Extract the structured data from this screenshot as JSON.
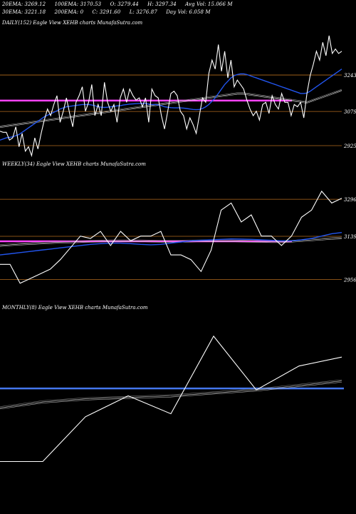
{
  "header": {
    "row1": [
      "20EMA: 3269.12",
      "100EMA: 3170.53",
      "O: 3279.44",
      "H: 3297.34",
      "Avg Vol: 15.066  M"
    ],
    "row2": [
      "30EMA: 3221.18",
      "200EMA: 0",
      "C: 3291.60",
      "L: 3276.87",
      "Day Vol: 6.058  M"
    ]
  },
  "colors": {
    "background": "#000000",
    "price": "#ffffff",
    "ema_fast": "#2255ee",
    "ema_slow": "#cccccc",
    "support_line": "#ff44ff",
    "level_line": "#b36b1e",
    "monthly_level": "#4477ee"
  },
  "chart_data": [
    {
      "type": "line",
      "title": "DAILY(152) Eagle   View  XEHB charts MunafaSutra.com",
      "y_ticks": [
        "3243",
        "3079",
        "2925"
      ],
      "price": [
        2990,
        2985,
        2985,
        2950,
        2960,
        3010,
        2920,
        2980,
        2900,
        2920,
        2880,
        2960,
        2910,
        2980,
        3040,
        3090,
        3060,
        3110,
        3150,
        3030,
        3080,
        3140,
        3070,
        3010,
        3120,
        3150,
        3190,
        3080,
        3120,
        3200,
        3060,
        3110,
        3060,
        3210,
        3120,
        3080,
        3110,
        3030,
        3140,
        3180,
        3120,
        3180,
        3150,
        3130,
        3140,
        3100,
        3140,
        3030,
        3180,
        3150,
        3140,
        3060,
        3000,
        3080,
        3160,
        3170,
        3150,
        3080,
        3060,
        3000,
        3050,
        3020,
        2980,
        3060,
        3140,
        3120,
        3250,
        3310,
        3270,
        3380,
        3260,
        3350,
        3230,
        3310,
        3190,
        3220,
        3200,
        3180,
        3130,
        3090,
        3060,
        3080,
        3040,
        3110,
        3120,
        3070,
        3150,
        3110,
        3090,
        3160,
        3120,
        3120,
        3060,
        3110,
        3100,
        3120,
        3050,
        3160,
        3240,
        3290,
        3350,
        3310,
        3390,
        3330,
        3420,
        3340,
        3360,
        3340,
        3350
      ],
      "ema_fast": [
        2950,
        2955,
        2960,
        2962,
        2965,
        2970,
        2975,
        2985,
        2995,
        3005,
        3015,
        3025,
        3035,
        3045,
        3055,
        3062,
        3068,
        3075,
        3082,
        3090,
        3095,
        3100,
        3102,
        3104,
        3106,
        3108,
        3110,
        3110,
        3110,
        3108,
        3105,
        3100,
        3098,
        3097,
        3098,
        3100,
        3102,
        3104,
        3105,
        3108,
        3110,
        3112,
        3113,
        3114,
        3115,
        3115,
        3115,
        3112,
        3110,
        3110,
        3108,
        3105,
        3100,
        3098,
        3096,
        3095,
        3095,
        3095,
        3094,
        3092,
        3090,
        3088,
        3087,
        3088,
        3092,
        3100,
        3110,
        3125,
        3140,
        3160,
        3180,
        3200,
        3215,
        3230,
        3240,
        3245,
        3248,
        3248,
        3245,
        3240,
        3235,
        3230,
        3225,
        3220,
        3215,
        3210,
        3205,
        3200,
        3195,
        3190,
        3185,
        3180,
        3175,
        3170,
        3165,
        3160,
        3160,
        3162,
        3170,
        3180,
        3190,
        3200,
        3210,
        3220,
        3230,
        3240,
        3250,
        3260,
        3270
      ],
      "ema_slow": [
        3010,
        3012,
        3014,
        3016,
        3018,
        3020,
        3022,
        3024,
        3026,
        3028,
        3030,
        3032,
        3034,
        3036,
        3038,
        3040,
        3042,
        3044,
        3046,
        3048,
        3050,
        3052,
        3054,
        3056,
        3058,
        3060,
        3062,
        3064,
        3066,
        3068,
        3070,
        3072,
        3074,
        3076,
        3078,
        3080,
        3082,
        3084,
        3086,
        3088,
        3090,
        3092,
        3094,
        3096,
        3098,
        3100,
        3102,
        3104,
        3106,
        3108,
        3110,
        3112,
        3114,
        3116,
        3118,
        3120,
        3122,
        3124,
        3126,
        3128,
        3130,
        3132,
        3134,
        3136,
        3138,
        3140,
        3142,
        3144,
        3146,
        3148,
        3150,
        3152,
        3154,
        3156,
        3158,
        3160,
        3160,
        3160,
        3158,
        3156,
        3154,
        3152,
        3150,
        3148,
        3146,
        3144,
        3142,
        3140,
        3138,
        3136,
        3134,
        3132,
        3130,
        3128,
        3126,
        3124,
        3122,
        3120,
        3125,
        3130,
        3135,
        3140,
        3145,
        3150,
        3155,
        3160,
        3165,
        3170,
        3175
      ],
      "levels": [
        3243,
        3079,
        2925
      ],
      "support": 3128,
      "ylim": [
        2880,
        3420
      ]
    },
    {
      "type": "line",
      "title": "WEEKLY(34) Eagle   View  XEHB charts MunafaSutra.com",
      "y_ticks": [
        "3296",
        "3139",
        "2956"
      ],
      "price": [
        3020,
        3020,
        2940,
        2960,
        2980,
        3000,
        3040,
        3090,
        3140,
        3130,
        3160,
        3100,
        3160,
        3120,
        3140,
        3140,
        3160,
        3060,
        3060,
        3040,
        2990,
        3080,
        3250,
        3280,
        3200,
        3230,
        3140,
        3140,
        3100,
        3140,
        3220,
        3250,
        3330,
        3280,
        3300
      ],
      "ema_fast": [
        3060,
        3065,
        3070,
        3075,
        3080,
        3085,
        3090,
        3095,
        3100,
        3105,
        3108,
        3110,
        3110,
        3108,
        3105,
        3103,
        3105,
        3110,
        3115,
        3120,
        3122,
        3124,
        3126,
        3128,
        3127,
        3126,
        3124,
        3122,
        3120,
        3120,
        3124,
        3130,
        3140,
        3150,
        3155
      ],
      "ema_slow": [
        3100,
        3103,
        3106,
        3108,
        3110,
        3112,
        3114,
        3115,
        3116,
        3118,
        3119,
        3120,
        3120,
        3120,
        3120,
        3119,
        3118,
        3118,
        3118,
        3119,
        3120,
        3120,
        3120,
        3120,
        3119,
        3118,
        3117,
        3116,
        3116,
        3118,
        3121,
        3124,
        3127,
        3130,
        3132
      ],
      "levels": [
        3296,
        3139,
        2956
      ],
      "support": 3118,
      "ylim": [
        2900,
        3360
      ]
    },
    {
      "type": "line",
      "title": "MONTHLY(8) Eagle   View  XEHB charts MunafaSutra.com",
      "price": [
        2780,
        2780,
        2930,
        3000,
        2940,
        3200,
        3020,
        3100,
        3130
      ],
      "ema_slow": [
        2960,
        2980,
        2990,
        2995,
        3000,
        3010,
        3020,
        3035,
        3050
      ],
      "level": 3025,
      "ylim": [
        2700,
        3250
      ]
    }
  ]
}
